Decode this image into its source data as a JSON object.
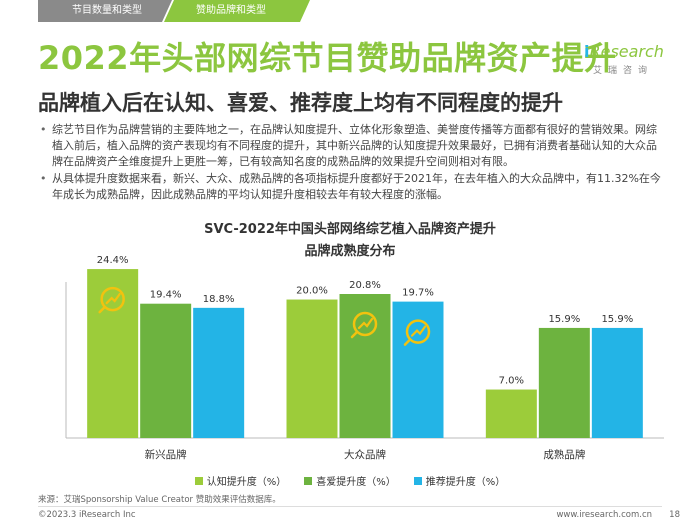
{
  "nav": {
    "tab1": "节目数量和类型",
    "tab2": "赞助品牌和类型"
  },
  "title": "2022年头部网综节目赞助品牌资产提升",
  "logo": {
    "brand": "Research",
    "brand_i": "i",
    "cn": "艾瑞咨询"
  },
  "subtitle": "品牌植入后在认知、喜爱、推荐度上均有不同程度的提升",
  "bullets": [
    "综艺节目作为品牌营销的主要阵地之一，在品牌认知度提升、立体化形象塑造、美誉度传播等方面都有很好的营销效果。网综植入前后，植入品牌的资产表现均有不同程度的提升，其中新兴品牌的认知度提升效果最好，已拥有消费者基础认知的大众品牌在品牌资产全维度提升上更胜一筹，已有较高知名度的成熟品牌的效果提升空间则相对有限。",
    "从具体提升度数据来看，新兴、大众、成熟品牌的各项指标提升度都好于2021年，在去年植入的大众品牌中，有11.32%在今年成长为成熟品牌，因此成熟品牌的平均认知提升度相较去年有较大程度的涨幅。"
  ],
  "chart_data": {
    "type": "bar",
    "title": "SVC-2022年中国头部网络综艺植入品牌资产提升",
    "subtitle": "品牌成熟度分布",
    "categories": [
      "新兴品牌",
      "大众品牌",
      "成熟品牌"
    ],
    "series": [
      {
        "name": "认知提升度（%）",
        "values": [
          24.4,
          20.0,
          7.0
        ],
        "color": "#9ccc3a"
      },
      {
        "name": "喜爱提升度（%）",
        "values": [
          19.4,
          20.8,
          15.9
        ],
        "color": "#6db33f"
      },
      {
        "name": "推荐提升度（%）",
        "values": [
          18.8,
          19.7,
          15.9
        ],
        "color": "#23b4e6"
      }
    ],
    "value_labels": [
      [
        "24.4%",
        "19.4%",
        "18.8%"
      ],
      [
        "20.0%",
        "20.8%",
        "19.7%"
      ],
      [
        "7.0%",
        "15.9%",
        "15.9%"
      ]
    ],
    "highlight_icons": [
      [
        0,
        0
      ],
      [
        1,
        1
      ],
      [
        1,
        2
      ]
    ],
    "ylim": [
      0,
      26
    ],
    "grid": false,
    "legend_position": "bottom"
  },
  "source": "来源：艾瑞Sponsorship Value Creator 赞助效果评估数据库。",
  "footer": {
    "copyright": "©2023.3 iResearch Inc",
    "url": "www.iresearch.com.cn",
    "page": "18"
  }
}
